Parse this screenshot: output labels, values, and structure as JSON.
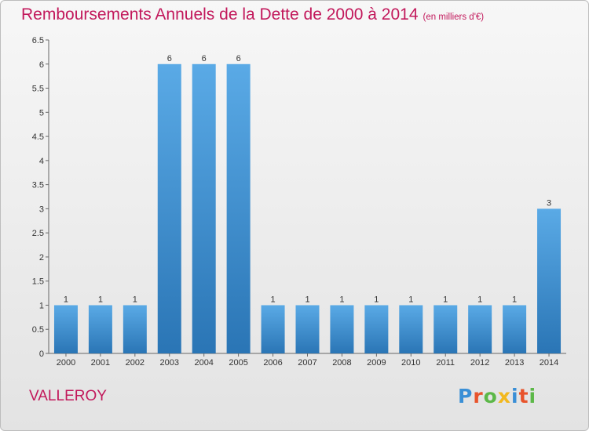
{
  "header": {
    "title": "Remboursements Annuels de la Dette de 2000 à 2014",
    "subtitle": "(en milliers d'€)"
  },
  "footer": {
    "place": "VALLEROY",
    "logo_text": "Proxiti"
  },
  "colors": {
    "title": "#c2185b",
    "bar_light": "#5aaae6",
    "bar_dark": "#2a75b5",
    "logo": [
      "#3a8fd6",
      "#e8542c",
      "#5cb848",
      "#f2b81e",
      "#3a8fd6",
      "#e8542c",
      "#5cb848"
    ]
  },
  "chart_data": {
    "type": "bar",
    "title": "Remboursements Annuels de la Dette de 2000 à 2014",
    "unit": "(en milliers d'€)",
    "categories": [
      "2000",
      "2001",
      "2002",
      "2003",
      "2004",
      "2005",
      "2006",
      "2007",
      "2008",
      "2009",
      "2010",
      "2011",
      "2012",
      "2013",
      "2014"
    ],
    "values": [
      1,
      1,
      1,
      6,
      6,
      6,
      1,
      1,
      1,
      1,
      1,
      1,
      1,
      1,
      3
    ],
    "ylim": [
      0,
      6.5
    ],
    "yticks": [
      "0",
      "0.5",
      "1",
      "1.5",
      "2",
      "2.5",
      "3",
      "3.5",
      "4",
      "4.5",
      "5",
      "5.5",
      "6",
      "6.5"
    ],
    "grid": false,
    "legend": "none"
  }
}
